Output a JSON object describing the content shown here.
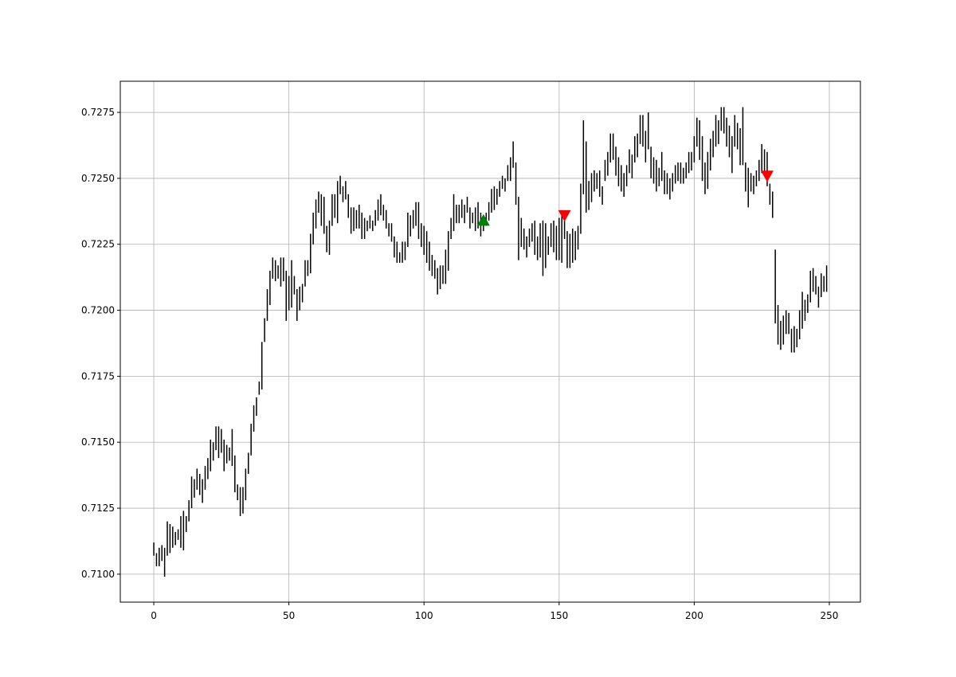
{
  "chart_data": {
    "type": "ohlc",
    "x": [
      0,
      1,
      2,
      3,
      4,
      5,
      6,
      7,
      8,
      9,
      10,
      11,
      12,
      13,
      14,
      15,
      16,
      17,
      18,
      19,
      20,
      21,
      22,
      23,
      24,
      25,
      26,
      27,
      28,
      29,
      30,
      31,
      32,
      33,
      34,
      35,
      36,
      37,
      38,
      39,
      40,
      41,
      42,
      43,
      44,
      45,
      46,
      47,
      48,
      49,
      50,
      51,
      52,
      53,
      54,
      55,
      56,
      57,
      58,
      59,
      60,
      61,
      62,
      63,
      64,
      65,
      66,
      67,
      68,
      69,
      70,
      71,
      72,
      73,
      74,
      75,
      76,
      77,
      78,
      79,
      80,
      81,
      82,
      83,
      84,
      85,
      86,
      87,
      88,
      89,
      90,
      91,
      92,
      93,
      94,
      95,
      96,
      97,
      98,
      99,
      100,
      101,
      102,
      103,
      104,
      105,
      106,
      107,
      108,
      109,
      110,
      111,
      112,
      113,
      114,
      115,
      116,
      117,
      118,
      119,
      120,
      121,
      122,
      123,
      124,
      125,
      126,
      127,
      128,
      129,
      130,
      131,
      132,
      133,
      134,
      135,
      136,
      137,
      138,
      139,
      140,
      141,
      142,
      143,
      144,
      145,
      146,
      147,
      148,
      149,
      150,
      151,
      152,
      153,
      154,
      155,
      156,
      157,
      158,
      159,
      160,
      161,
      162,
      163,
      164,
      165,
      166,
      167,
      168,
      169,
      170,
      171,
      172,
      173,
      174,
      175,
      176,
      177,
      178,
      179,
      180,
      181,
      182,
      183,
      184,
      185,
      186,
      187,
      188,
      189,
      190,
      191,
      192,
      193,
      194,
      195,
      196,
      197,
      198,
      199,
      200,
      201,
      202,
      203,
      204,
      205,
      206,
      207,
      208,
      209,
      210,
      211,
      212,
      213,
      214,
      215,
      216,
      217,
      218,
      219,
      220,
      221,
      222,
      223,
      224,
      225,
      226,
      227,
      228,
      229,
      230,
      231,
      232,
      233,
      234,
      235,
      236,
      237,
      238,
      239,
      240,
      241,
      242,
      243,
      244,
      245,
      246,
      247,
      248,
      249
    ],
    "high": [
      0.7112,
      0.7108,
      0.711,
      0.7111,
      0.711,
      0.712,
      0.7119,
      0.7118,
      0.7116,
      0.7117,
      0.7122,
      0.7124,
      0.7122,
      0.7128,
      0.7137,
      0.7136,
      0.714,
      0.7138,
      0.7136,
      0.7141,
      0.7144,
      0.7151,
      0.715,
      0.7156,
      0.7156,
      0.7155,
      0.7151,
      0.7149,
      0.7148,
      0.7155,
      0.7145,
      0.7134,
      0.7133,
      0.7133,
      0.714,
      0.7146,
      0.7157,
      0.7164,
      0.7167,
      0.7173,
      0.7188,
      0.7197,
      0.7208,
      0.7215,
      0.722,
      0.7219,
      0.7217,
      0.722,
      0.722,
      0.7215,
      0.7213,
      0.7219,
      0.7213,
      0.7208,
      0.7209,
      0.721,
      0.7219,
      0.7219,
      0.7229,
      0.7237,
      0.7242,
      0.7245,
      0.7244,
      0.7243,
      0.7232,
      0.7234,
      0.7244,
      0.7244,
      0.7249,
      0.7251,
      0.7247,
      0.7249,
      0.7244,
      0.7239,
      0.7239,
      0.7238,
      0.724,
      0.7237,
      0.7235,
      0.7234,
      0.7236,
      0.7234,
      0.7238,
      0.7242,
      0.7244,
      0.724,
      0.7238,
      0.7233,
      0.7233,
      0.7228,
      0.7226,
      0.7222,
      0.7226,
      0.7226,
      0.7237,
      0.7236,
      0.7238,
      0.7241,
      0.7241,
      0.7233,
      0.7232,
      0.723,
      0.7226,
      0.7221,
      0.7219,
      0.7216,
      0.7217,
      0.7217,
      0.7223,
      0.723,
      0.7235,
      0.7244,
      0.724,
      0.724,
      0.7242,
      0.724,
      0.7243,
      0.7239,
      0.7237,
      0.7239,
      0.7241,
      0.7237,
      0.7236,
      0.7237,
      0.7241,
      0.7246,
      0.7247,
      0.7246,
      0.7249,
      0.7251,
      0.725,
      0.7255,
      0.7258,
      0.7264,
      0.7256,
      0.7243,
      0.7235,
      0.7231,
      0.7228,
      0.7231,
      0.7233,
      0.7234,
      0.7228,
      0.7233,
      0.7234,
      0.7233,
      0.7228,
      0.7233,
      0.7234,
      0.7232,
      0.7235,
      0.7236,
      0.7235,
      0.723,
      0.7229,
      0.7231,
      0.723,
      0.7232,
      0.7248,
      0.7272,
      0.7264,
      0.7249,
      0.7252,
      0.7253,
      0.7252,
      0.7253,
      0.7247,
      0.7257,
      0.726,
      0.7267,
      0.7267,
      0.7262,
      0.7258,
      0.7255,
      0.7252,
      0.7255,
      0.7261,
      0.7259,
      0.7266,
      0.7267,
      0.7274,
      0.7274,
      0.7268,
      0.7275,
      0.7262,
      0.7258,
      0.7257,
      0.7254,
      0.726,
      0.7253,
      0.7252,
      0.725,
      0.7252,
      0.7255,
      0.7256,
      0.7256,
      0.7254,
      0.7256,
      0.726,
      0.726,
      0.7266,
      0.7273,
      0.7272,
      0.7266,
      0.7256,
      0.726,
      0.7265,
      0.7268,
      0.7274,
      0.7272,
      0.7277,
      0.7277,
      0.7273,
      0.727,
      0.7266,
      0.7274,
      0.7271,
      0.7269,
      0.7277,
      0.7256,
      0.7254,
      0.7252,
      0.7251,
      0.7253,
      0.7257,
      0.7263,
      0.7261,
      0.726,
      0.7248,
      0.7245,
      0.7223,
      0.7202,
      0.7196,
      0.7198,
      0.72,
      0.7199,
      0.7193,
      0.7194,
      0.7193,
      0.72,
      0.7207,
      0.7204,
      0.7206,
      0.7215,
      0.7216,
      0.7213,
      0.7209,
      0.7214,
      0.7213,
      0.7217
    ],
    "low": [
      0.7107,
      0.7103,
      0.7103,
      0.7105,
      0.7099,
      0.7107,
      0.7108,
      0.711,
      0.7111,
      0.7113,
      0.711,
      0.7109,
      0.7116,
      0.712,
      0.7125,
      0.7129,
      0.7132,
      0.713,
      0.7127,
      0.7132,
      0.7136,
      0.7139,
      0.7143,
      0.7147,
      0.7144,
      0.7146,
      0.7139,
      0.7142,
      0.7143,
      0.7141,
      0.7131,
      0.7128,
      0.7122,
      0.7123,
      0.7128,
      0.7138,
      0.7145,
      0.7154,
      0.716,
      0.7168,
      0.717,
      0.7188,
      0.7196,
      0.7202,
      0.7212,
      0.7211,
      0.7212,
      0.7209,
      0.7211,
      0.7196,
      0.72,
      0.7201,
      0.7206,
      0.7196,
      0.72,
      0.7203,
      0.7209,
      0.7213,
      0.7214,
      0.7225,
      0.7231,
      0.7237,
      0.7232,
      0.7229,
      0.7222,
      0.7221,
      0.7232,
      0.7235,
      0.7233,
      0.7244,
      0.7241,
      0.7242,
      0.7235,
      0.7229,
      0.723,
      0.7231,
      0.7231,
      0.7227,
      0.7227,
      0.723,
      0.7231,
      0.723,
      0.7232,
      0.7234,
      0.7236,
      0.7234,
      0.7231,
      0.7228,
      0.7226,
      0.722,
      0.7218,
      0.7218,
      0.7218,
      0.7219,
      0.7224,
      0.7228,
      0.7231,
      0.7232,
      0.7227,
      0.7224,
      0.7221,
      0.7218,
      0.7215,
      0.7213,
      0.7212,
      0.7206,
      0.7208,
      0.721,
      0.721,
      0.7215,
      0.7227,
      0.723,
      0.7233,
      0.7233,
      0.7235,
      0.7233,
      0.7237,
      0.7231,
      0.7233,
      0.723,
      0.7231,
      0.7228,
      0.723,
      0.7232,
      0.7234,
      0.7237,
      0.7238,
      0.724,
      0.7243,
      0.7246,
      0.7245,
      0.7249,
      0.7249,
      0.7254,
      0.724,
      0.7219,
      0.7224,
      0.7223,
      0.722,
      0.7224,
      0.7226,
      0.7221,
      0.7219,
      0.722,
      0.7213,
      0.7216,
      0.7221,
      0.7224,
      0.7222,
      0.7219,
      0.7219,
      0.7218,
      0.7227,
      0.7216,
      0.7216,
      0.7218,
      0.7219,
      0.7223,
      0.7229,
      0.7244,
      0.7237,
      0.7238,
      0.7241,
      0.7245,
      0.7246,
      0.7243,
      0.724,
      0.7249,
      0.7251,
      0.7256,
      0.7257,
      0.7251,
      0.7247,
      0.7245,
      0.7243,
      0.7247,
      0.7252,
      0.725,
      0.7256,
      0.7258,
      0.7263,
      0.7262,
      0.7256,
      0.7261,
      0.725,
      0.7248,
      0.7245,
      0.7247,
      0.7249,
      0.7244,
      0.7244,
      0.7242,
      0.7245,
      0.7248,
      0.7249,
      0.7248,
      0.7248,
      0.725,
      0.7252,
      0.7253,
      0.7256,
      0.7262,
      0.7257,
      0.7249,
      0.7244,
      0.7246,
      0.7253,
      0.7258,
      0.7262,
      0.7263,
      0.7268,
      0.7267,
      0.7262,
      0.7258,
      0.7252,
      0.7262,
      0.7261,
      0.7255,
      0.7255,
      0.7245,
      0.7239,
      0.7245,
      0.7244,
      0.7247,
      0.7249,
      0.7252,
      0.7251,
      0.7247,
      0.724,
      0.7235,
      0.7195,
      0.7187,
      0.7185,
      0.7187,
      0.7191,
      0.7191,
      0.7184,
      0.7184,
      0.7186,
      0.7189,
      0.7193,
      0.7196,
      0.7199,
      0.7203,
      0.7207,
      0.7206,
      0.7201,
      0.7205,
      0.7207,
      0.7207
    ],
    "color": "#000000",
    "buy": {
      "x": [
        122
      ],
      "y": [
        0.7234
      ],
      "color": "#008000"
    },
    "sell": {
      "x": [
        152,
        227
      ],
      "y": [
        0.7236,
        0.7251
      ],
      "color": "#ff0000"
    },
    "xlim": [
      -12.4,
      261.5
    ],
    "ylim": [
      0.70894,
      0.72868
    ],
    "xticks": [
      0,
      50,
      100,
      150,
      200,
      250
    ],
    "yticks": [
      {
        "value": 0.71,
        "label": "0.7100"
      },
      0.7125,
      {
        "value": 0.715,
        "label": "0.7150"
      },
      0.7175,
      {
        "value": 0.72,
        "label": "0.7200"
      },
      0.7225,
      {
        "value": 0.725,
        "label": "0.7250"
      },
      0.7275
    ],
    "grid": true
  }
}
